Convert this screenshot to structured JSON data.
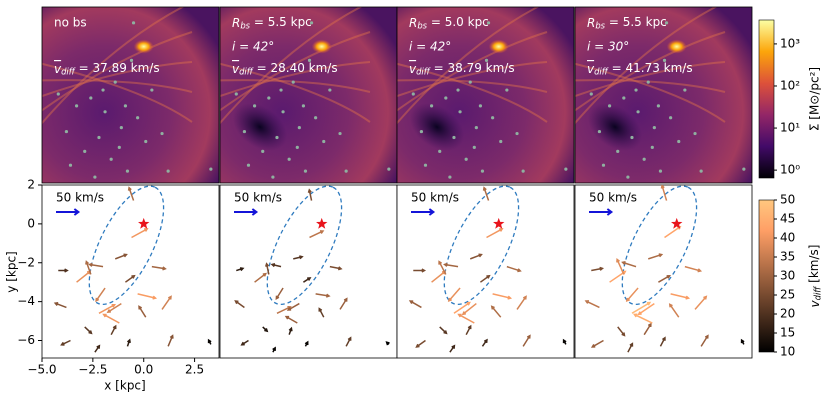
{
  "chart_data": {
    "type": "quiver",
    "xlabel": "x [kpc]",
    "ylabel": "y [kpc]",
    "xlim": [
      -5.0,
      3.7
    ],
    "ylim": [
      -6.9,
      2.0
    ],
    "xticks": [
      {
        "value": -5.0,
        "label": "−5.0"
      },
      {
        "value": -2.5,
        "label": "−2.5"
      },
      {
        "value": 0.0,
        "label": "0.0"
      },
      {
        "value": 2.5,
        "label": "2.5"
      }
    ],
    "yticks": [
      2,
      0,
      {
        "value": -2,
        "label": "−2"
      },
      {
        "value": -4,
        "label": "−4"
      },
      {
        "value": -6,
        "label": "−6"
      }
    ],
    "x": [
      -4.2,
      -3.8,
      -3.3,
      -2.9,
      -2.6,
      -2.2,
      -1.9,
      -1.6,
      -1.4,
      -1.1,
      -0.8,
      -0.5,
      -0.3,
      0.1,
      0.4,
      0.9,
      -3.6,
      -2.4,
      -1.2,
      -0.6,
      -2.0,
      1.2,
      -0.9,
      3.3
    ],
    "y": [
      -2.4,
      -4.3,
      -3.0,
      -5.3,
      -2.6,
      -4.6,
      -3.3,
      -5.7,
      -1.8,
      -4.1,
      -6.3,
      1.2,
      -3.6,
      -4.8,
      -2.2,
      -4.4,
      -6.0,
      -6.6,
      -5.1,
      -0.7,
      -2.2,
      -6.3,
      -3.0,
      -6.2
    ],
    "star": [
      0,
      0
    ],
    "bar_ellipse": {
      "center": [
        -0.85,
        -1.1
      ],
      "a": 3.3,
      "b": 1.3,
      "angle": 65
    },
    "quiver_key": {
      "label": "50 km/s",
      "value": 50
    },
    "panels": [
      {
        "title": "no bs",
        "mean_label": {
          "symbol": "v",
          "sub": "diff",
          "text": " = 37.89 km/s"
        },
        "u": [
          20,
          -25,
          30,
          15,
          -10,
          35,
          -20,
          10,
          25,
          -30,
          5,
          -10,
          40,
          -15,
          30,
          20,
          -20,
          10,
          -35,
          35,
          -30,
          10,
          20,
          -5
        ],
        "v": [
          0,
          10,
          25,
          -15,
          30,
          20,
          -30,
          20,
          10,
          -20,
          15,
          30,
          -10,
          25,
          -5,
          30,
          -10,
          15,
          20,
          20,
          5,
          25,
          15,
          10
        ]
      },
      {
        "title": {
          "symbol": "R",
          "sub": "bs",
          "text": " = 5.5 kpc"
        },
        "incl": "i = 42°",
        "mean_label": {
          "symbol": "v",
          "sub": "diff",
          "text": " = 28.40 km/s"
        },
        "u": [
          15,
          -20,
          25,
          10,
          -5,
          30,
          -15,
          5,
          20,
          -25,
          5,
          -5,
          30,
          -10,
          25,
          15,
          -15,
          5,
          -25,
          30,
          -20,
          10,
          15,
          -5
        ],
        "v": [
          5,
          15,
          20,
          -10,
          25,
          15,
          -25,
          15,
          5,
          -15,
          10,
          25,
          -5,
          20,
          -5,
          25,
          -10,
          10,
          15,
          15,
          5,
          20,
          10,
          5
        ]
      },
      {
        "title": {
          "symbol": "R",
          "sub": "bs",
          "text": " = 5.0 kpc"
        },
        "incl": "i = 42°",
        "mean_label": {
          "symbol": "v",
          "sub": "diff",
          "text": " = 38.79 km/s"
        },
        "u": [
          25,
          -25,
          30,
          15,
          -15,
          35,
          -25,
          10,
          25,
          -30,
          10,
          -10,
          40,
          -20,
          30,
          20,
          -20,
          10,
          -35,
          35,
          -30,
          15,
          20,
          -5
        ],
        "v": [
          0,
          15,
          25,
          -15,
          30,
          25,
          -30,
          20,
          10,
          -25,
          15,
          30,
          -10,
          25,
          -10,
          30,
          -15,
          15,
          20,
          20,
          5,
          25,
          15,
          10
        ]
      },
      {
        "title": {
          "symbol": "R",
          "sub": "bs",
          "text": " = 5.5 kpc"
        },
        "incl": "i = 30°",
        "mean_label": {
          "symbol": "v",
          "sub": "diff",
          "text": " = 41.73 km/s"
        },
        "u": [
          25,
          -30,
          35,
          15,
          -15,
          40,
          -25,
          15,
          30,
          -35,
          10,
          -10,
          40,
          -20,
          35,
          25,
          -25,
          10,
          -40,
          35,
          -30,
          15,
          25,
          -5
        ],
        "v": [
          5,
          15,
          25,
          -20,
          35,
          25,
          -30,
          25,
          10,
          -25,
          20,
          35,
          -10,
          30,
          -10,
          30,
          -15,
          20,
          20,
          25,
          10,
          25,
          15,
          10
        ]
      }
    ],
    "colorbar_top": {
      "label": "Σ [M⊙/pc²]",
      "log": true,
      "lim": [
        0.65,
        3700
      ],
      "ticks": [
        {
          "value": 1,
          "label": "10⁰"
        },
        {
          "value": 10,
          "label": "10¹"
        },
        {
          "value": 100,
          "label": "10²"
        },
        {
          "value": 1000,
          "label": "10³"
        }
      ]
    },
    "colorbar_bottom": {
      "label": {
        "symbol": "v",
        "sub": "diff",
        "text": " [km/s]"
      },
      "lim": [
        10,
        50
      ],
      "ticks": [
        10,
        15,
        20,
        25,
        30,
        35,
        40,
        45,
        50
      ]
    }
  }
}
